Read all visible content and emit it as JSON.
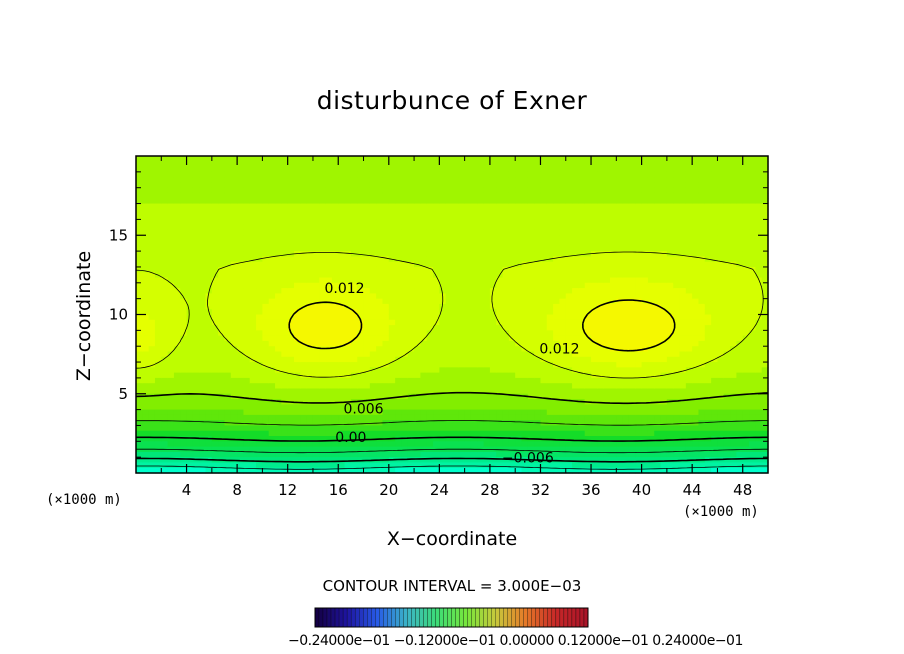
{
  "chart_data": {
    "type": "contour",
    "title": "disturbunce of Exner",
    "xlabel": "X−coordinate",
    "ylabel": "Z−coordinate",
    "x_unit_left": "(×1000 m)",
    "x_unit_right": "(×1000 m)",
    "xlim": [
      0,
      50
    ],
    "ylim": [
      0,
      20
    ],
    "xticks": [
      4,
      8,
      12,
      16,
      20,
      24,
      28,
      32,
      36,
      40,
      44,
      48
    ],
    "yticks": [
      5,
      10,
      15
    ],
    "contour_interval": "CONTOUR INTERVAL = 3.000E−03",
    "contour_labels": [
      {
        "text": "0.012",
        "x": 16.5,
        "y": 11.6
      },
      {
        "text": "0.012",
        "x": 33.5,
        "y": 7.8
      },
      {
        "text": "0.006",
        "x": 18,
        "y": 4.0
      },
      {
        "text": "0.00",
        "x": 17,
        "y": 2.2
      },
      {
        "text": "−0.006",
        "x": 31,
        "y": 0.9
      }
    ],
    "colorbar_labels": "−0.24000e−01  −0.12000e−01  0.00000  0.12000e−01  0.24000e−01",
    "colors": {
      "low": "#00ffcc",
      "mid": "#ccff00",
      "high": "#ffcc00"
    }
  }
}
